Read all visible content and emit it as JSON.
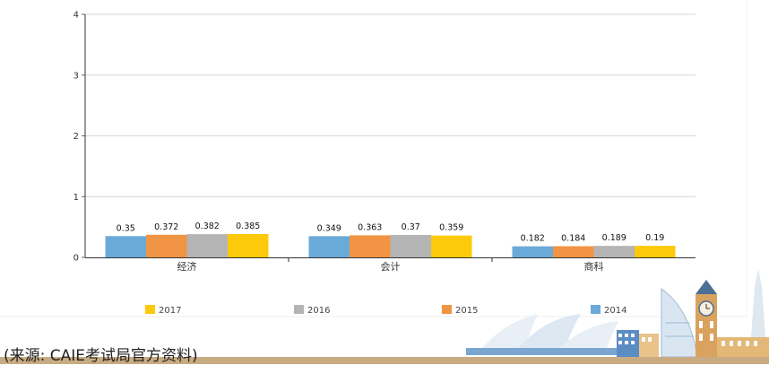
{
  "chart_data": {
    "type": "bar",
    "categories": [
      "经济",
      "会计",
      "商科"
    ],
    "series": [
      {
        "name": "2014",
        "color": "#6aaad9",
        "values": [
          0.35,
          0.349,
          0.182
        ]
      },
      {
        "name": "2015",
        "color": "#f19444",
        "values": [
          0.372,
          0.363,
          0.184
        ]
      },
      {
        "name": "2016",
        "color": "#b4b4b4",
        "values": [
          0.382,
          0.37,
          0.189
        ]
      },
      {
        "name": "2017",
        "color": "#fcca0a",
        "values": [
          0.385,
          0.359,
          0.19
        ]
      }
    ],
    "value_labels": [
      [
        "0.35",
        "0.349",
        "0.182"
      ],
      [
        "0.372",
        "0.363",
        "0.184"
      ],
      [
        "0.382",
        "0.37",
        "0.189"
      ],
      [
        "0.385",
        "0.359",
        "0.19"
      ]
    ],
    "ylim": [
      0,
      4
    ],
    "yticks": [
      "0",
      "1",
      "2",
      "3",
      "4"
    ],
    "grid": true,
    "legend": {
      "placement": "bottom",
      "order": [
        "2017",
        "2016",
        "2015",
        "2014"
      ]
    }
  },
  "footer": {
    "source": "(来源: CAIE考试局官方资料)"
  },
  "colors": {
    "ground": "#c8ab82",
    "building_blue": "#6f9fce",
    "opera_house": "#e6eef6"
  }
}
